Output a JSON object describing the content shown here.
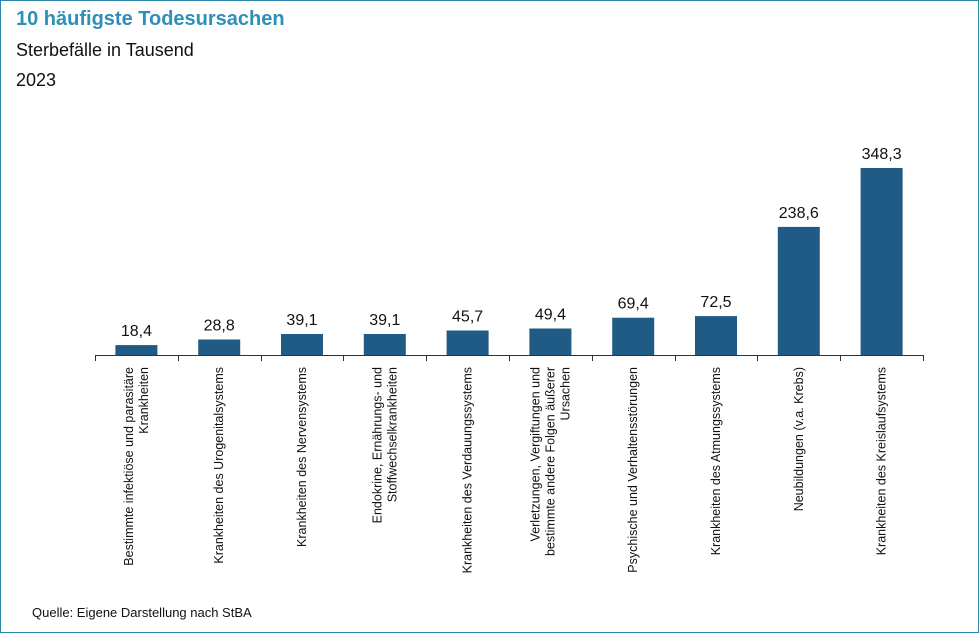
{
  "title": "10 häufigste Todesursachen",
  "subtitle": "Sterbefälle in Tausend",
  "year": "2023",
  "source": "Quelle: Eigene Darstellung nach StBA",
  "colors": {
    "bar": "#1f5b84",
    "title": "#2e8fb8",
    "frame": "#2e86ab",
    "axis": "#333333"
  },
  "chart_data": {
    "type": "bar",
    "title": "10 häufigste Todesursachen",
    "subtitle": "Sterbefälle in Tausend",
    "categories": [
      [
        "Bestimmte infektiöse und parasitäre",
        "Krankheiten"
      ],
      [
        "Krankheiten des Urogenitalsystems"
      ],
      [
        "Krankheiten des Nervensystems"
      ],
      [
        "Endokrine, Ernährungs- und",
        "Stoffwechselkrankheiten"
      ],
      [
        "Krankheiten des Verdauungssystems"
      ],
      [
        "Verletzungen, Vergiftungen und",
        "bestimmte andere Folgen äußerer",
        "Ursachen"
      ],
      [
        "Psychische und Verhaltensstörungen"
      ],
      [
        "Krankheiten des Atmungssystems"
      ],
      [
        "Neubildungen (v.a. Krebs)"
      ],
      [
        "Krankheiten des Kreislaufsystems"
      ]
    ],
    "values": [
      18.4,
      28.8,
      39.1,
      39.1,
      45.7,
      49.4,
      69.4,
      72.5,
      238.6,
      348.3
    ],
    "value_labels": [
      "18,4",
      "28,8",
      "39,1",
      "39,1",
      "45,7",
      "49,4",
      "69,4",
      "72,5",
      "238,6",
      "348,3"
    ],
    "ylim": [
      0,
      348.3
    ],
    "grid": false,
    "legend": "none"
  }
}
